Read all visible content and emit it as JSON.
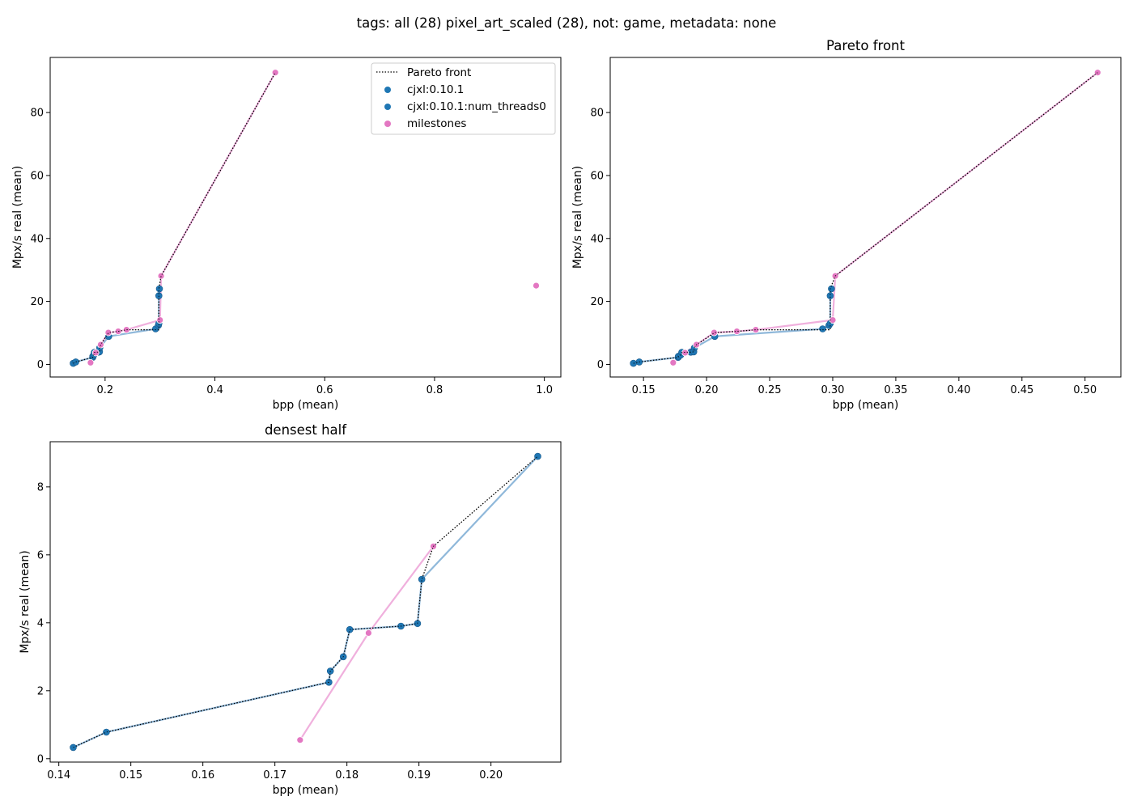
{
  "figure": {
    "suptitle": "tags: all (28) pixel_art_scaled (28), not: game, metadata: none"
  },
  "colors": {
    "cjxl": "#1f77b4",
    "cjxl_dark": "#1a5a8c",
    "cjxl_line": "#8fb8da",
    "milestones": "#e377c2",
    "milestones_line": "#f0b0dd",
    "pareto": "#000000"
  },
  "legend": {
    "placement": "upper-right",
    "entries": [
      {
        "label": "Pareto front",
        "kind": "pareto"
      },
      {
        "label": "cjxl:0.10.1",
        "kind": "cjxl"
      },
      {
        "label": "cjxl:0.10.1:num_threads0",
        "kind": "cjxl"
      },
      {
        "label": "milestones",
        "kind": "milestones"
      }
    ]
  },
  "chart_data": [
    {
      "type": "scatter",
      "title": "",
      "xlabel": "bpp (mean)",
      "ylabel": "Mpx/s real (mean)",
      "xlim": [
        0.1,
        1.03
      ],
      "ylim": [
        -4.0,
        97.5
      ],
      "xticks": [
        0.2,
        0.4,
        0.6,
        0.8,
        1.0
      ],
      "xtick_labels": [
        "0.2",
        "0.4",
        "0.6",
        "0.8",
        "1.0"
      ],
      "yticks": [
        0,
        20,
        40,
        60,
        80
      ],
      "ytick_labels": [
        "0",
        "20",
        "40",
        "60",
        "80"
      ],
      "legend": true,
      "series": [
        {
          "name": "cjxl:0.10.1",
          "kind": "cjxl",
          "x": [
            0.142,
            0.1466,
            0.1775,
            0.1777,
            0.1795,
            0.1804,
            0.1875,
            0.1898,
            0.1904,
            0.2065,
            0.292,
            0.297,
            0.298,
            0.298,
            0.299
          ],
          "y": [
            0.33,
            0.78,
            2.25,
            2.58,
            3.0,
            3.8,
            3.9,
            3.98,
            5.28,
            8.9,
            11.3,
            12.4,
            13.0,
            21.8,
            24.0
          ]
        },
        {
          "name": "milestones",
          "kind": "milestones",
          "x": [
            0.1735,
            0.183,
            0.192,
            0.206,
            0.224,
            0.239,
            0.3,
            0.302,
            0.51,
            0.985
          ],
          "y": [
            0.55,
            3.7,
            6.25,
            10.1,
            10.5,
            11.0,
            14.1,
            28.1,
            92.7,
            25.0
          ]
        }
      ],
      "series_lines": [
        {
          "kind": "cjxl",
          "x": [
            0.142,
            0.1466,
            0.1775,
            0.1777,
            0.1795,
            0.1804,
            0.1875,
            0.1898,
            0.1904,
            0.2065,
            0.292,
            0.297,
            0.298,
            0.298,
            0.299
          ],
          "y": [
            0.33,
            0.78,
            2.25,
            2.58,
            3.0,
            3.8,
            3.9,
            3.98,
            5.28,
            8.9,
            11.3,
            12.4,
            13.0,
            21.8,
            24.0
          ]
        },
        {
          "kind": "milestones",
          "x": [
            0.1735,
            0.183,
            0.192,
            0.206,
            0.224,
            0.239,
            0.3,
            0.302,
            0.51
          ],
          "y": [
            0.55,
            3.7,
            6.25,
            10.1,
            10.5,
            11.0,
            14.1,
            28.1,
            92.7
          ]
        }
      ],
      "pareto": {
        "x": [
          0.142,
          0.1466,
          0.1775,
          0.1777,
          0.1795,
          0.1804,
          0.1875,
          0.1898,
          0.1904,
          0.192,
          0.2065,
          0.224,
          0.239,
          0.298,
          0.298,
          0.302,
          0.51
        ],
        "y": [
          0.33,
          0.78,
          2.25,
          2.58,
          3.0,
          3.8,
          3.9,
          3.98,
          5.28,
          6.25,
          10.1,
          10.5,
          11.0,
          11.0,
          24.0,
          28.1,
          92.7
        ]
      }
    },
    {
      "type": "scatter",
      "title": "Pareto front",
      "xlabel": "bpp (mean)",
      "ylabel": "Mpx/s real (mean)",
      "xlim": [
        0.1236,
        0.5284
      ],
      "ylim": [
        -4.0,
        97.5
      ],
      "xticks": [
        0.15,
        0.2,
        0.25,
        0.3,
        0.35,
        0.4,
        0.45,
        0.5
      ],
      "xtick_labels": [
        "0.15",
        "0.20",
        "0.25",
        "0.30",
        "0.35",
        "0.40",
        "0.45",
        "0.50"
      ],
      "yticks": [
        0,
        20,
        40,
        60,
        80
      ],
      "ytick_labels": [
        "0",
        "20",
        "40",
        "60",
        "80"
      ],
      "legend": false,
      "series": [
        {
          "name": "cjxl:0.10.1",
          "kind": "cjxl",
          "x": [
            0.142,
            0.1466,
            0.1775,
            0.1777,
            0.1795,
            0.1804,
            0.1875,
            0.1898,
            0.1904,
            0.2065,
            0.292,
            0.297,
            0.298,
            0.298,
            0.299
          ],
          "y": [
            0.33,
            0.78,
            2.25,
            2.58,
            3.0,
            3.8,
            3.9,
            3.98,
            5.28,
            8.9,
            11.3,
            12.4,
            13.0,
            21.8,
            24.0
          ]
        },
        {
          "name": "milestones",
          "kind": "milestones",
          "x": [
            0.1735,
            0.183,
            0.192,
            0.206,
            0.224,
            0.239,
            0.3,
            0.302,
            0.51
          ],
          "y": [
            0.55,
            3.7,
            6.25,
            10.1,
            10.5,
            11.0,
            14.1,
            28.1,
            92.7
          ]
        }
      ],
      "series_lines": [
        {
          "kind": "cjxl",
          "x": [
            0.142,
            0.1466,
            0.1775,
            0.1777,
            0.1795,
            0.1804,
            0.1875,
            0.1898,
            0.1904,
            0.2065,
            0.292,
            0.297,
            0.298,
            0.298,
            0.299
          ],
          "y": [
            0.33,
            0.78,
            2.25,
            2.58,
            3.0,
            3.8,
            3.9,
            3.98,
            5.28,
            8.9,
            11.3,
            12.4,
            13.0,
            21.8,
            24.0
          ]
        },
        {
          "kind": "milestones",
          "x": [
            0.1735,
            0.183,
            0.192,
            0.206,
            0.224,
            0.239,
            0.3,
            0.302,
            0.51
          ],
          "y": [
            0.55,
            3.7,
            6.25,
            10.1,
            10.5,
            11.0,
            14.1,
            28.1,
            92.7
          ]
        }
      ],
      "pareto": {
        "x": [
          0.142,
          0.1466,
          0.1775,
          0.1777,
          0.1795,
          0.1804,
          0.1875,
          0.1898,
          0.1904,
          0.192,
          0.2065,
          0.224,
          0.239,
          0.298,
          0.298,
          0.302,
          0.51
        ],
        "y": [
          0.33,
          0.78,
          2.25,
          2.58,
          3.0,
          3.8,
          3.9,
          3.98,
          5.28,
          6.25,
          10.1,
          10.5,
          11.0,
          11.0,
          24.0,
          28.1,
          92.7
        ]
      }
    },
    {
      "type": "scatter",
      "title": "densest half",
      "xlabel": "bpp (mean)",
      "ylabel": "Mpx/s real (mean)",
      "xlim": [
        0.1388,
        0.2097
      ],
      "ylim": [
        -0.1,
        9.33
      ],
      "xticks": [
        0.14,
        0.15,
        0.16,
        0.17,
        0.18,
        0.19,
        0.2
      ],
      "xtick_labels": [
        "0.14",
        "0.15",
        "0.16",
        "0.17",
        "0.18",
        "0.19",
        "0.20"
      ],
      "yticks": [
        0,
        2,
        4,
        6,
        8
      ],
      "ytick_labels": [
        "0",
        "2",
        "4",
        "6",
        "8"
      ],
      "legend": false,
      "series": [
        {
          "name": "cjxl:0.10.1",
          "kind": "cjxl",
          "x": [
            0.142,
            0.1466,
            0.1775,
            0.1777,
            0.1795,
            0.1804,
            0.1875,
            0.1898,
            0.1904,
            0.2065
          ],
          "y": [
            0.33,
            0.78,
            2.25,
            2.58,
            3.0,
            3.8,
            3.9,
            3.98,
            5.28,
            8.9
          ]
        },
        {
          "name": "milestones",
          "kind": "milestones",
          "x": [
            0.1735,
            0.183,
            0.192
          ],
          "y": [
            0.55,
            3.7,
            6.25
          ]
        }
      ],
      "series_lines": [
        {
          "kind": "cjxl",
          "x": [
            0.142,
            0.1466,
            0.1775,
            0.1777,
            0.1795,
            0.1804,
            0.1875,
            0.1898,
            0.1904,
            0.2065
          ],
          "y": [
            0.33,
            0.78,
            2.25,
            2.58,
            3.0,
            3.8,
            3.9,
            3.98,
            5.28,
            8.9
          ]
        },
        {
          "kind": "milestones",
          "x": [
            0.1735,
            0.183,
            0.192
          ],
          "y": [
            0.55,
            3.7,
            6.25
          ]
        }
      ],
      "pareto": {
        "x": [
          0.142,
          0.1466,
          0.1775,
          0.1777,
          0.1795,
          0.1804,
          0.1875,
          0.1898,
          0.1904,
          0.192,
          0.2065
        ],
        "y": [
          0.33,
          0.78,
          2.25,
          2.58,
          3.0,
          3.8,
          3.9,
          3.98,
          5.28,
          6.25,
          8.9
        ]
      }
    }
  ]
}
